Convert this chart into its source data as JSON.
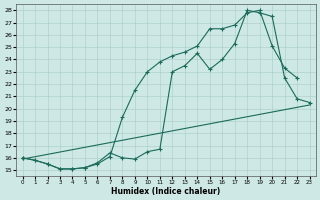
{
  "xlabel": "Humidex (Indice chaleur)",
  "xlim": [
    -0.5,
    23.5
  ],
  "ylim": [
    14.5,
    28.5
  ],
  "xticks": [
    0,
    1,
    2,
    3,
    4,
    5,
    6,
    7,
    8,
    9,
    10,
    11,
    12,
    13,
    14,
    15,
    16,
    17,
    18,
    19,
    20,
    21,
    22,
    23
  ],
  "yticks": [
    15,
    16,
    17,
    18,
    19,
    20,
    21,
    22,
    23,
    24,
    25,
    26,
    27,
    28
  ],
  "bg_color": "#cde8e5",
  "line_color": "#1a6b5a",
  "grid_color": "#a8ccc8",
  "curve1_x": [
    0,
    1,
    2,
    3,
    4,
    5,
    6,
    7,
    8,
    9,
    10,
    11,
    12,
    13,
    14,
    15,
    16,
    17,
    18,
    19,
    20,
    21,
    22
  ],
  "curve1_y": [
    16.0,
    15.8,
    15.5,
    15.1,
    15.1,
    15.2,
    15.5,
    16.1,
    19.3,
    21.5,
    23.0,
    23.8,
    24.3,
    24.6,
    25.1,
    26.5,
    26.5,
    26.8,
    27.8,
    28.0,
    25.1,
    23.3,
    22.5
  ],
  "curve2_x": [
    0,
    1,
    2,
    3,
    4,
    5,
    6,
    7,
    8,
    9,
    10,
    11,
    12,
    13,
    14,
    15,
    16,
    17,
    18,
    19,
    20,
    21,
    22,
    23
  ],
  "curve2_y": [
    16.0,
    15.8,
    15.5,
    15.1,
    15.1,
    15.2,
    15.6,
    16.4,
    16.0,
    15.9,
    16.5,
    16.7,
    23.0,
    23.5,
    24.5,
    23.2,
    24.0,
    25.3,
    28.0,
    27.8,
    27.5,
    22.5,
    20.8,
    20.5
  ],
  "curve3_x": [
    0,
    23
  ],
  "curve3_y": [
    15.9,
    20.3
  ]
}
